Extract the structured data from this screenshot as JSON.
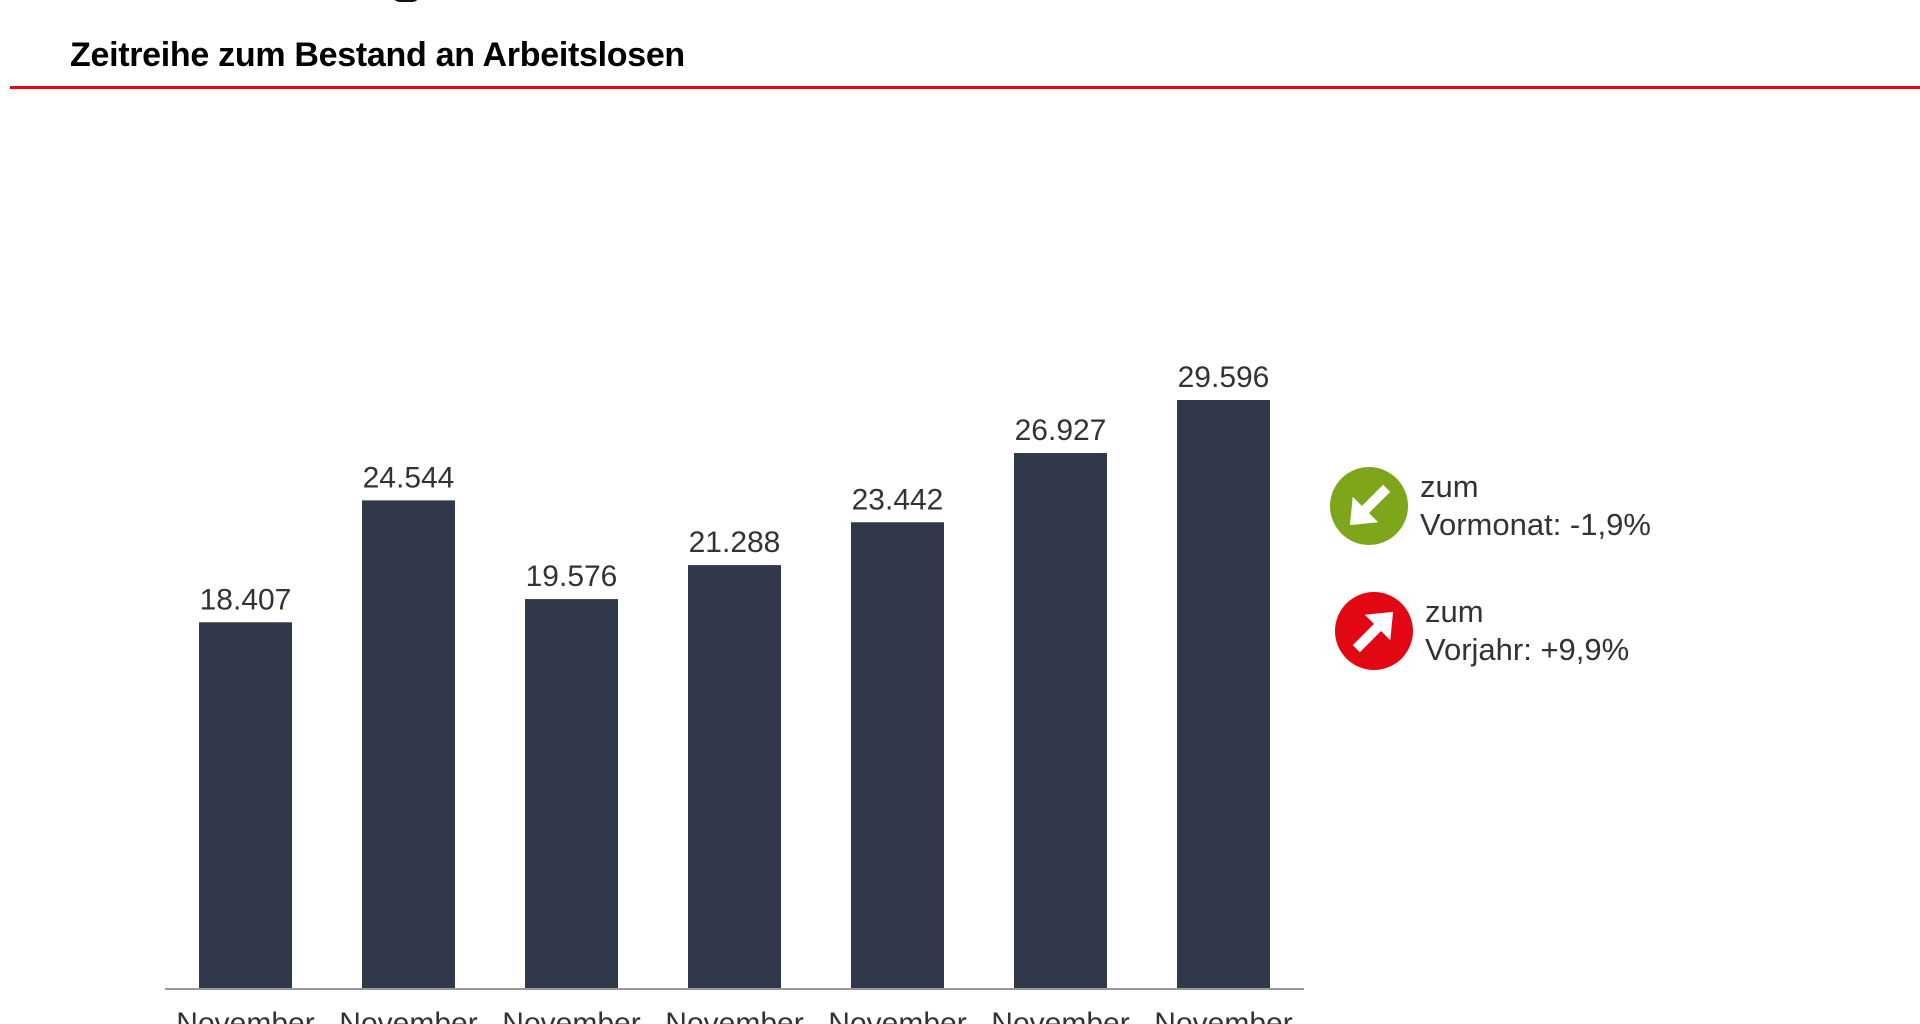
{
  "header": {
    "subtitle": "Zeitreihe zum Bestand an Arbeitslosen"
  },
  "chart_data": {
    "type": "bar",
    "categories": [
      "November",
      "November",
      "November",
      "November",
      "November",
      "November",
      "November"
    ],
    "values": [
      18407,
      24544,
      19576,
      21288,
      23442,
      26927,
      29596
    ],
    "value_labels": [
      "18.407",
      "24.544",
      "19.576",
      "21.288",
      "23.442",
      "26.927",
      "29.596"
    ],
    "bar_color": "#313849",
    "xlabel": "",
    "ylabel": "",
    "ylim": [
      0,
      29596
    ],
    "grid": false
  },
  "indicators": {
    "month": {
      "line1": "zum",
      "line2": "Vormonat: -1,9%",
      "color": "#7ea61a",
      "icon": "arrow-down-right-icon"
    },
    "year": {
      "line1": "zum",
      "line2": "Vorjahr: +9,9%",
      "color": "#e30613",
      "icon": "arrow-up-right-icon"
    }
  }
}
